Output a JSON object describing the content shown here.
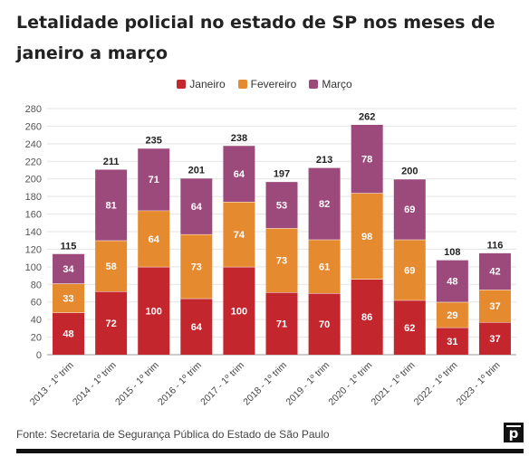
{
  "title": "Letalidade policial no estado de SP nos meses de janeiro a março",
  "source": "Fonte: Secretaria de Segurança Pública do Estado de São Paulo",
  "logo_text": "p",
  "colors": {
    "Janeiro": "#c4262e",
    "Fevereiro": "#e68a30",
    "Março": "#9c4a7c"
  },
  "chart_data": {
    "type": "bar",
    "stacked": true,
    "categories": [
      "2013 - 1º trim",
      "2014 - 1º trim",
      "2015 - 1º trim",
      "2016 - 1º trim",
      "2017 - 1º trim",
      "2018 - 1º trim",
      "2019 - 1º trim",
      "2020 - 1º trim",
      "2021 - 1º trim",
      "2022 - 1º trim",
      "2023 - 1º trim"
    ],
    "series": [
      {
        "name": "Janeiro",
        "values": [
          48,
          72,
          100,
          64,
          100,
          71,
          70,
          86,
          62,
          31,
          37
        ]
      },
      {
        "name": "Fevereiro",
        "values": [
          33,
          58,
          64,
          73,
          74,
          73,
          61,
          98,
          69,
          29,
          37
        ]
      },
      {
        "name": "Março",
        "values": [
          34,
          81,
          71,
          64,
          64,
          53,
          82,
          78,
          69,
          48,
          42
        ]
      }
    ],
    "totals": [
      115,
      211,
      235,
      201,
      238,
      197,
      213,
      262,
      200,
      108,
      116
    ],
    "ylim": [
      0,
      280
    ],
    "yticks": [
      0,
      20,
      40,
      60,
      80,
      100,
      120,
      140,
      160,
      180,
      200,
      220,
      240,
      260,
      280
    ],
    "legend_position": "top-center",
    "grid": true
  }
}
